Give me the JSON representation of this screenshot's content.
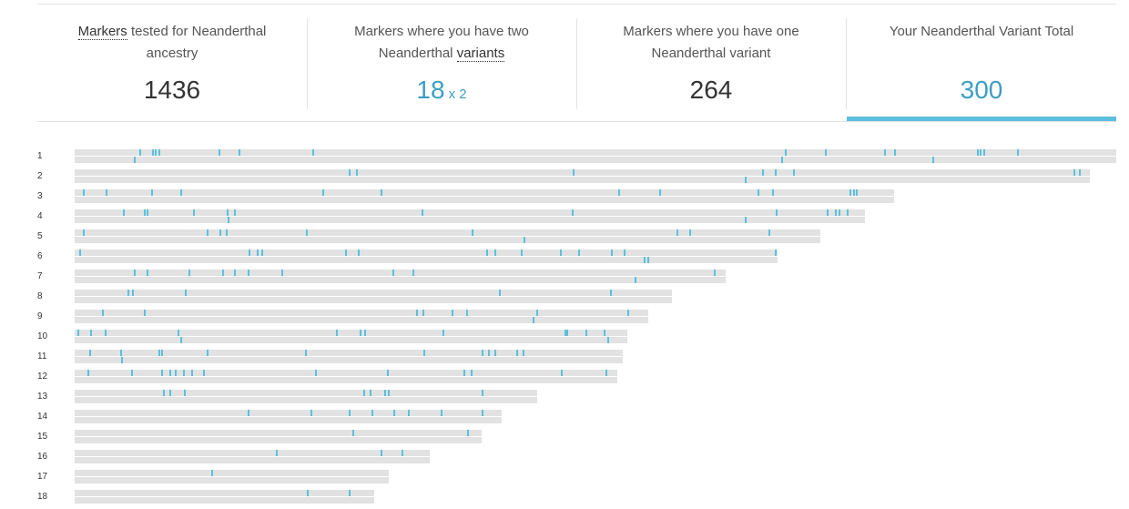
{
  "summary": {
    "tested": {
      "label_pre": "",
      "term": "Markers",
      "label_post": " tested for Neanderthal ancestry",
      "value": "1436"
    },
    "two_variants": {
      "label_pre": "Markers where you have two Neanderthal ",
      "term": "variants",
      "label_post": "",
      "value": "18",
      "suffix": "x 2"
    },
    "one_variant": {
      "label": "Markers where you have one Neanderthal variant",
      "value": "264"
    },
    "total": {
      "label": "Your Neanderthal Variant Total",
      "value": "300"
    }
  },
  "colors": {
    "accent": "#5bc0de",
    "accent_text": "#3d9dc4",
    "track": "#e2e2e2"
  },
  "chart_data": {
    "type": "chromosome-ideogram",
    "chromosomes": [
      {
        "name": "1",
        "length": 1.0,
        "markers": [
          [
            0.057,
            2
          ],
          [
            0.062,
            1
          ],
          [
            0.074,
            1
          ],
          [
            0.077,
            1
          ],
          [
            0.08,
            1
          ],
          [
            0.138,
            1
          ],
          [
            0.157,
            1
          ],
          [
            0.228,
            1
          ],
          [
            0.678,
            2
          ],
          [
            0.682,
            1
          ],
          [
            0.72,
            1
          ],
          [
            0.777,
            1
          ],
          [
            0.787,
            1
          ],
          [
            0.823,
            2
          ],
          [
            0.866,
            1
          ],
          [
            0.869,
            1
          ],
          [
            0.872,
            1
          ],
          [
            0.905,
            1
          ]
        ]
      },
      {
        "name": "2",
        "length": 0.975,
        "markers": [
          [
            0.263,
            1
          ],
          [
            0.27,
            1
          ],
          [
            0.478,
            1
          ],
          [
            0.643,
            2
          ],
          [
            0.66,
            1
          ],
          [
            0.672,
            1
          ],
          [
            0.69,
            1
          ],
          [
            0.959,
            1
          ],
          [
            0.964,
            1
          ]
        ]
      },
      {
        "name": "3",
        "length": 0.787,
        "markers": [
          [
            0.008,
            1
          ],
          [
            0.03,
            1
          ],
          [
            0.073,
            1
          ],
          [
            0.101,
            1
          ],
          [
            0.238,
            1
          ],
          [
            0.294,
            1
          ],
          [
            0.522,
            1
          ],
          [
            0.561,
            1
          ],
          [
            0.656,
            1
          ],
          [
            0.67,
            1
          ],
          [
            0.744,
            1
          ],
          [
            0.747,
            1
          ],
          [
            0.75,
            1
          ]
        ]
      },
      {
        "name": "4",
        "length": 0.759,
        "markers": [
          [
            0.046,
            1
          ],
          [
            0.066,
            1
          ],
          [
            0.069,
            1
          ],
          [
            0.114,
            1
          ],
          [
            0.146,
            1
          ],
          [
            0.147,
            2
          ],
          [
            0.153,
            1
          ],
          [
            0.333,
            1
          ],
          [
            0.477,
            1
          ],
          [
            0.643,
            2
          ],
          [
            0.673,
            1
          ],
          [
            0.722,
            1
          ],
          [
            0.73,
            1
          ],
          [
            0.733,
            1
          ],
          [
            0.741,
            1
          ]
        ]
      },
      {
        "name": "5",
        "length": 0.716,
        "markers": [
          [
            0.008,
            1
          ],
          [
            0.127,
            1
          ],
          [
            0.139,
            1
          ],
          [
            0.145,
            1
          ],
          [
            0.222,
            1
          ],
          [
            0.381,
            1
          ],
          [
            0.431,
            2
          ],
          [
            0.578,
            1
          ],
          [
            0.59,
            1
          ],
          [
            0.666,
            1
          ]
        ]
      },
      {
        "name": "6",
        "length": 0.675,
        "markers": [
          [
            0.004,
            1
          ],
          [
            0.167,
            1
          ],
          [
            0.175,
            1
          ],
          [
            0.179,
            1
          ],
          [
            0.26,
            1
          ],
          [
            0.272,
            1
          ],
          [
            0.395,
            1
          ],
          [
            0.403,
            1
          ],
          [
            0.428,
            1
          ],
          [
            0.466,
            1
          ],
          [
            0.483,
            1
          ],
          [
            0.515,
            1
          ],
          [
            0.527,
            1
          ],
          [
            0.546,
            2
          ],
          [
            0.55,
            2
          ],
          [
            0.672,
            1
          ]
        ]
      },
      {
        "name": "7",
        "length": 0.625,
        "markers": [
          [
            0.057,
            1
          ],
          [
            0.069,
            1
          ],
          [
            0.109,
            1
          ],
          [
            0.142,
            1
          ],
          [
            0.153,
            1
          ],
          [
            0.166,
            1
          ],
          [
            0.198,
            1
          ],
          [
            0.305,
            1
          ],
          [
            0.324,
            1
          ],
          [
            0.538,
            2
          ],
          [
            0.614,
            1
          ]
        ]
      },
      {
        "name": "8",
        "length": 0.573,
        "markers": [
          [
            0.051,
            1
          ],
          [
            0.055,
            1
          ],
          [
            0.106,
            1
          ],
          [
            0.407,
            1
          ],
          [
            0.514,
            1
          ]
        ]
      },
      {
        "name": "9",
        "length": 0.551,
        "markers": [
          [
            0.026,
            1
          ],
          [
            0.066,
            1
          ],
          [
            0.328,
            1
          ],
          [
            0.334,
            1
          ],
          [
            0.362,
            1
          ],
          [
            0.376,
            1
          ],
          [
            0.44,
            2
          ],
          [
            0.443,
            1
          ],
          [
            0.531,
            1
          ]
        ]
      },
      {
        "name": "10",
        "length": 0.531,
        "markers": [
          [
            0.003,
            1
          ],
          [
            0.015,
            1
          ],
          [
            0.029,
            1
          ],
          [
            0.099,
            1
          ],
          [
            0.101,
            2
          ],
          [
            0.251,
            1
          ],
          [
            0.274,
            1
          ],
          [
            0.278,
            1
          ],
          [
            0.353,
            1
          ],
          [
            0.47,
            1
          ],
          [
            0.472,
            1
          ],
          [
            0.49,
            1
          ],
          [
            0.508,
            1
          ],
          [
            0.511,
            2
          ]
        ]
      },
      {
        "name": "11",
        "length": 0.526,
        "markers": [
          [
            0.014,
            1
          ],
          [
            0.044,
            1
          ],
          [
            0.045,
            2
          ],
          [
            0.08,
            1
          ],
          [
            0.083,
            1
          ],
          [
            0.127,
            1
          ],
          [
            0.221,
            1
          ],
          [
            0.335,
            1
          ],
          [
            0.391,
            1
          ],
          [
            0.397,
            1
          ],
          [
            0.403,
            1
          ],
          [
            0.424,
            1
          ],
          [
            0.43,
            1
          ]
        ]
      },
      {
        "name": "12",
        "length": 0.521,
        "markers": [
          [
            0.012,
            1
          ],
          [
            0.054,
            1
          ],
          [
            0.083,
            1
          ],
          [
            0.091,
            1
          ],
          [
            0.096,
            1
          ],
          [
            0.104,
            1
          ],
          [
            0.112,
            1
          ],
          [
            0.123,
            1
          ],
          [
            0.231,
            1
          ],
          [
            0.3,
            1
          ],
          [
            0.373,
            1
          ],
          [
            0.38,
            1
          ],
          [
            0.467,
            1
          ],
          [
            0.51,
            1
          ]
        ]
      },
      {
        "name": "13",
        "length": 0.444,
        "markers": [
          [
            0.085,
            1
          ],
          [
            0.091,
            1
          ],
          [
            0.105,
            1
          ],
          [
            0.277,
            1
          ],
          [
            0.283,
            1
          ],
          [
            0.297,
            1
          ],
          [
            0.301,
            1
          ],
          [
            0.391,
            1
          ]
        ]
      },
      {
        "name": "14",
        "length": 0.41,
        "markers": [
          [
            0.166,
            1
          ],
          [
            0.226,
            1
          ],
          [
            0.263,
            1
          ],
          [
            0.285,
            1
          ],
          [
            0.306,
            1
          ],
          [
            0.32,
            1
          ],
          [
            0.351,
            1
          ],
          [
            0.391,
            1
          ]
        ]
      },
      {
        "name": "15",
        "length": 0.391,
        "markers": [
          [
            0.267,
            1
          ],
          [
            0.377,
            1
          ]
        ]
      },
      {
        "name": "16",
        "length": 0.341,
        "markers": [
          [
            0.193,
            1
          ],
          [
            0.294,
            1
          ],
          [
            0.314,
            1
          ]
        ]
      },
      {
        "name": "17",
        "length": 0.302,
        "markers": [
          [
            0.131,
            1
          ]
        ]
      },
      {
        "name": "18",
        "length": 0.288,
        "markers": [
          [
            0.223,
            1
          ],
          [
            0.263,
            1
          ]
        ]
      }
    ]
  }
}
